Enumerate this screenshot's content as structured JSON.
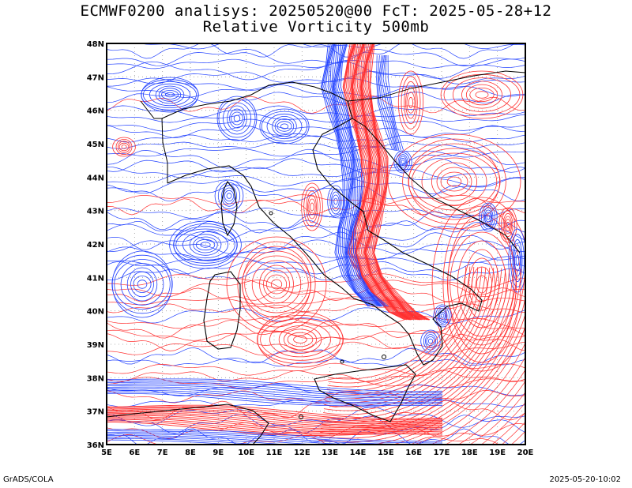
{
  "header": {
    "line1": "ECMWF0200 analisys: 20250520@00 FcT: 2025-05-28+12",
    "line2": "Relative Vorticity 500mb"
  },
  "footer": {
    "left": "GrADS/COLA",
    "right": "2025-05-20-10:02"
  },
  "map": {
    "lon_ticks": [
      "5E",
      "6E",
      "7E",
      "8E",
      "9E",
      "10E",
      "11E",
      "12E",
      "13E",
      "14E",
      "15E",
      "16E",
      "17E",
      "18E",
      "19E",
      "20E"
    ],
    "lat_ticks": [
      "48N",
      "47N",
      "46N",
      "45N",
      "44N",
      "43N",
      "42N",
      "41N",
      "40N",
      "39N",
      "38N",
      "37N",
      "36N"
    ],
    "lon_range": [
      5,
      20
    ],
    "lat_range": [
      36,
      48
    ],
    "colors": {
      "positive": "#ff3030",
      "negative": "#2040ff",
      "coast": "#000000",
      "grid": "#999999"
    }
  }
}
